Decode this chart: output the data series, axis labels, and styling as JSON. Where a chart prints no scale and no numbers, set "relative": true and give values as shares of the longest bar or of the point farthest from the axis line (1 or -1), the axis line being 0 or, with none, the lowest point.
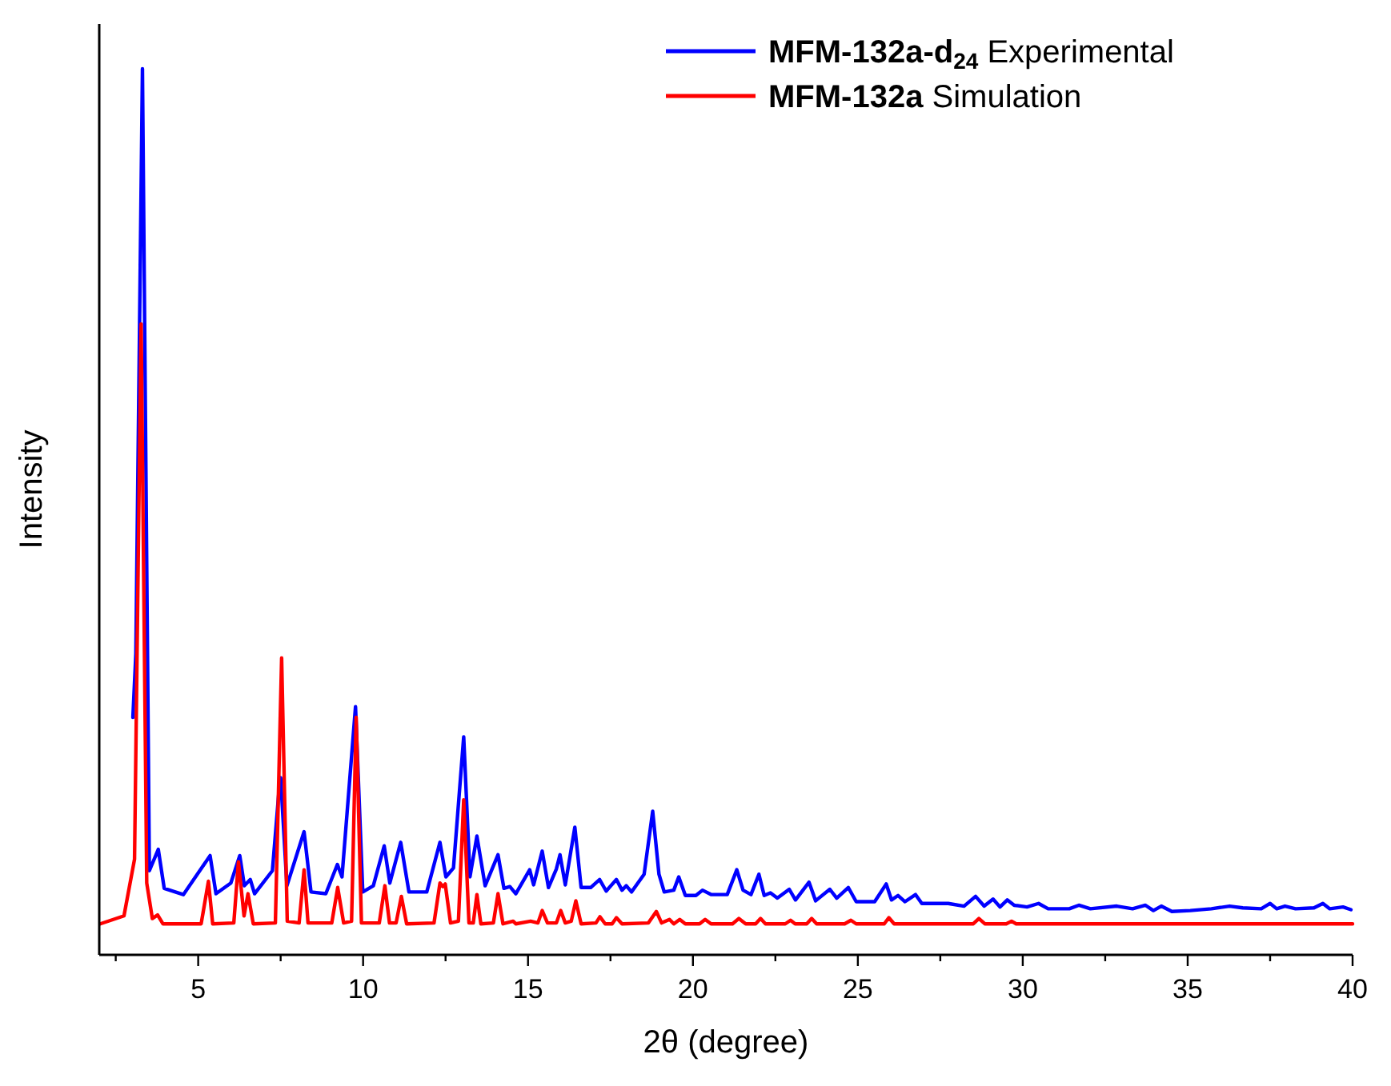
{
  "chart_data": {
    "type": "line",
    "xlabel": "2θ (degree)",
    "ylabel": "Intensity",
    "relative": true,
    "xlim": [
      2,
      40
    ],
    "xticks": [
      {
        "value": 2.5,
        "label": null
      },
      5,
      {
        "value": 7.5,
        "label": null
      },
      10,
      {
        "value": 12.5,
        "label": null
      },
      15,
      {
        "value": 17.5,
        "label": null
      },
      20,
      {
        "value": 22.5,
        "label": null
      },
      25,
      {
        "value": 27.5,
        "label": null
      },
      30,
      {
        "value": 32.5,
        "label": null
      },
      35,
      {
        "value": 37.5,
        "label": null
      },
      40
    ],
    "legend": "top right",
    "grid": false,
    "marker": "none",
    "line_style": "solid",
    "series": [
      {
        "name": "MFM-132a-d$_{24}$ Experimental",
        "color": "#0000ff",
        "x": [
          3.02,
          3.11,
          3.31,
          3.52,
          3.79,
          3.97,
          4.55,
          5.36,
          5.54,
          5.99,
          6.26,
          6.4,
          6.58,
          6.71,
          7.25,
          7.46,
          7.5,
          7.69,
          8.21,
          8.42,
          8.87,
          9.22,
          9.36,
          9.77,
          9.99,
          10.31,
          10.64,
          10.81,
          11.14,
          11.39,
          11.93,
          12.33,
          12.51,
          12.74,
          13.05,
          13.24,
          13.45,
          13.7,
          14.09,
          14.27,
          14.45,
          14.63,
          15.05,
          15.17,
          15.43,
          15.62,
          15.86,
          15.97,
          16.13,
          16.42,
          16.61,
          16.9,
          17.17,
          17.37,
          17.68,
          17.85,
          17.98,
          18.14,
          18.52,
          18.78,
          18.97,
          19.13,
          19.42,
          19.57,
          19.77,
          20.09,
          20.29,
          20.56,
          21.04,
          21.33,
          21.52,
          21.76,
          22.0,
          22.16,
          22.35,
          22.56,
          22.92,
          23.11,
          23.52,
          23.72,
          24.15,
          24.36,
          24.71,
          24.95,
          25.51,
          25.86,
          26.02,
          26.22,
          26.43,
          26.75,
          26.94,
          27.74,
          28.22,
          28.57,
          28.83,
          29.1,
          29.31,
          29.53,
          29.74,
          30.13,
          30.48,
          30.77,
          31.41,
          31.7,
          32.05,
          32.85,
          33.33,
          33.72,
          33.96,
          34.2,
          34.52,
          35.08,
          35.72,
          36.27,
          36.67,
          37.23,
          37.5,
          37.7,
          37.95,
          38.27,
          38.83,
          39.1,
          39.31,
          39.71,
          39.95
        ],
        "values": [
          0.268,
          0.34,
          1,
          0.095,
          0.119,
          0.075,
          0.068,
          0.112,
          0.069,
          0.081,
          0.112,
          0.078,
          0.085,
          0.069,
          0.095,
          0.19,
          0.2,
          0.078,
          0.139,
          0.071,
          0.069,
          0.102,
          0.088,
          0.28,
          0.071,
          0.078,
          0.123,
          0.081,
          0.127,
          0.071,
          0.071,
          0.127,
          0.088,
          0.098,
          0.246,
          0.088,
          0.134,
          0.078,
          0.113,
          0.075,
          0.077,
          0.069,
          0.096,
          0.079,
          0.117,
          0.076,
          0.097,
          0.113,
          0.079,
          0.144,
          0.076,
          0.076,
          0.085,
          0.072,
          0.085,
          0.073,
          0.078,
          0.071,
          0.091,
          0.162,
          0.091,
          0.071,
          0.073,
          0.088,
          0.067,
          0.067,
          0.073,
          0.068,
          0.068,
          0.096,
          0.073,
          0.068,
          0.091,
          0.067,
          0.07,
          0.064,
          0.074,
          0.062,
          0.082,
          0.061,
          0.074,
          0.064,
          0.076,
          0.06,
          0.06,
          0.08,
          0.062,
          0.067,
          0.06,
          0.068,
          0.058,
          0.058,
          0.055,
          0.066,
          0.055,
          0.063,
          0.054,
          0.062,
          0.056,
          0.054,
          0.058,
          0.052,
          0.052,
          0.056,
          0.052,
          0.055,
          0.052,
          0.056,
          0.05,
          0.055,
          0.049,
          0.05,
          0.052,
          0.055,
          0.053,
          0.052,
          0.058,
          0.052,
          0.055,
          0.052,
          0.053,
          0.058,
          0.052,
          0.054,
          0.051
        ]
      },
      {
        "name": "MFM-132a Simulation",
        "color": "#ff0000",
        "x": [
          2.03,
          2.75,
          3.07,
          3.27,
          3.44,
          3.61,
          3.77,
          3.93,
          5.09,
          5.31,
          5.44,
          6.08,
          6.22,
          6.39,
          6.51,
          6.67,
          7.34,
          7.53,
          7.7,
          8.06,
          8.21,
          8.33,
          9.05,
          9.23,
          9.41,
          9.65,
          9.79,
          9.95,
          10.49,
          10.66,
          10.8,
          11.0,
          11.16,
          11.32,
          12.15,
          12.33,
          12.42,
          12.49,
          12.65,
          12.89,
          13.05,
          13.21,
          13.34,
          13.45,
          13.57,
          13.95,
          14.09,
          14.24,
          14.55,
          14.63,
          15.08,
          15.3,
          15.43,
          15.59,
          15.86,
          15.99,
          16.13,
          16.31,
          16.45,
          16.61,
          17.06,
          17.18,
          17.34,
          17.55,
          17.68,
          17.85,
          18.65,
          18.89,
          19.05,
          19.29,
          19.42,
          19.6,
          19.77,
          20.2,
          20.37,
          20.55,
          21.2,
          21.39,
          21.6,
          21.9,
          22.05,
          22.2,
          22.8,
          22.96,
          23.1,
          23.45,
          23.6,
          23.75,
          24.6,
          24.79,
          24.95,
          25.8,
          25.94,
          26.1,
          28.5,
          28.67,
          28.85,
          29.5,
          29.66,
          29.8,
          40
        ],
        "values": [
          0.035,
          0.044,
          0.108,
          0.712,
          0.081,
          0.041,
          0.045,
          0.035,
          0.035,
          0.083,
          0.035,
          0.036,
          0.105,
          0.044,
          0.069,
          0.035,
          0.036,
          0.335,
          0.038,
          0.036,
          0.096,
          0.036,
          0.036,
          0.076,
          0.036,
          0.038,
          0.268,
          0.036,
          0.036,
          0.078,
          0.036,
          0.036,
          0.066,
          0.035,
          0.036,
          0.081,
          0.077,
          0.08,
          0.036,
          0.038,
          0.175,
          0.036,
          0.036,
          0.068,
          0.035,
          0.036,
          0.069,
          0.035,
          0.038,
          0.035,
          0.038,
          0.036,
          0.05,
          0.036,
          0.036,
          0.05,
          0.036,
          0.038,
          0.061,
          0.035,
          0.036,
          0.043,
          0.035,
          0.035,
          0.042,
          0.035,
          0.036,
          0.049,
          0.036,
          0.04,
          0.035,
          0.04,
          0.035,
          0.035,
          0.04,
          0.035,
          0.035,
          0.041,
          0.035,
          0.035,
          0.041,
          0.035,
          0.035,
          0.039,
          0.035,
          0.035,
          0.041,
          0.035,
          0.035,
          0.039,
          0.035,
          0.035,
          0.042,
          0.035,
          0.035,
          0.041,
          0.035,
          0.035,
          0.038,
          0.035,
          0.035
        ]
      }
    ]
  }
}
